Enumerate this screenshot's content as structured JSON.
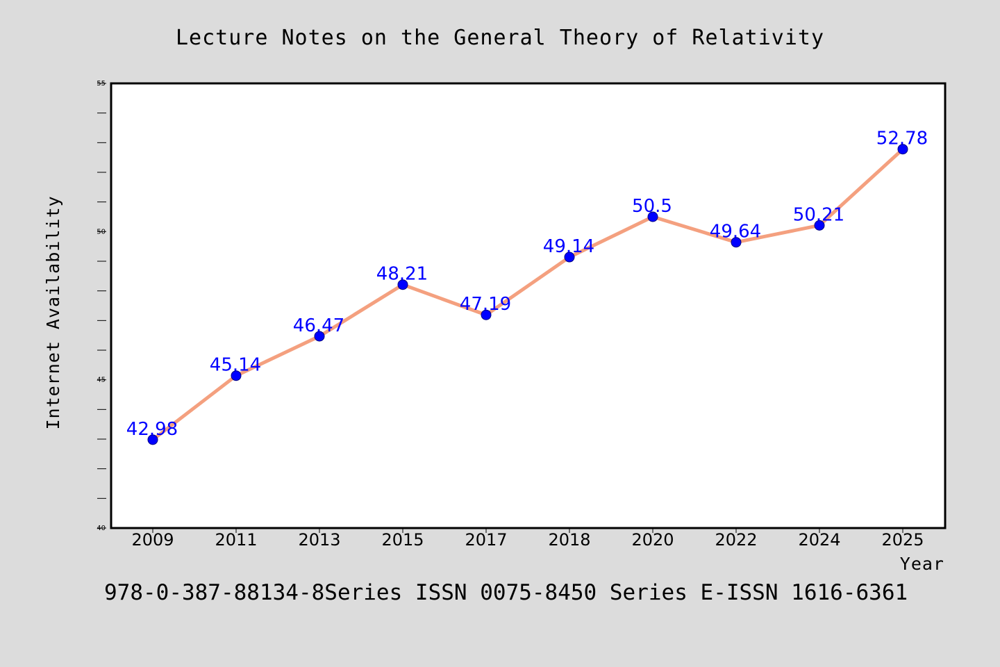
{
  "chart_data": {
    "type": "line",
    "title": "Lecture Notes on the General Theory of Relativity",
    "xlabel": "Year",
    "ylabel": "Internet Availability",
    "categories": [
      "2009",
      "2011",
      "2013",
      "2015",
      "2017",
      "2018",
      "2020",
      "2022",
      "2024",
      "2025"
    ],
    "series": [
      {
        "values": [
          42.98,
          45.14,
          46.47,
          48.21,
          47.19,
          49.14,
          50.5,
          49.64,
          50.21,
          52.78
        ]
      }
    ],
    "data_labels": [
      "42.98",
      "45.14",
      "46.47",
      "48.21",
      "47.19",
      "49.14",
      "50.5",
      "49.64",
      "50.21",
      "52.78"
    ],
    "ylim": [
      40,
      55
    ],
    "yticks": [
      "40",
      "45",
      "50",
      "55"
    ],
    "grid": false,
    "legend": "none",
    "colors": {
      "line": "#f4a07f",
      "marker": "#0000ff",
      "data_label": "#0000ff",
      "background": "#dcdcdc",
      "plot_background": "#ffffff"
    }
  },
  "footer": {
    "text": "978-0-387-88134-8Series ISSN 0075-8450 Series E-ISSN 1616-6361"
  }
}
